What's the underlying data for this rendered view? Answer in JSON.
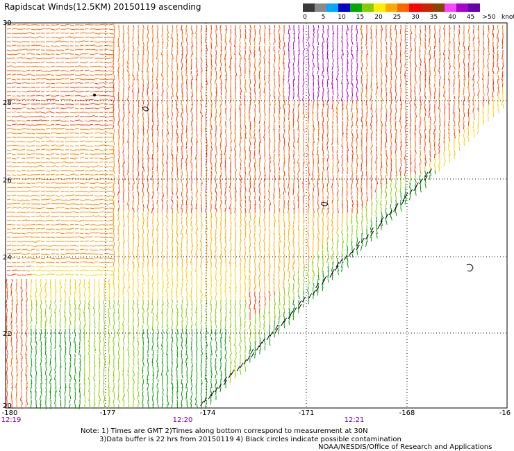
{
  "title": "Rapidscat Winds(12.5KM) 20150119 ascending",
  "legend": {
    "unit": "knots",
    "colors": [
      "#3a3a3a",
      "#8a8a8a",
      "#00aaff",
      "#0000cc",
      "#00aa00",
      "#88cc00",
      "#ffee00",
      "#ffaa00",
      "#ff6600",
      "#ff0000",
      "#cc2200",
      "#884400",
      "#ff44ff",
      "#aa00cc",
      "#6600aa"
    ],
    "labels": [
      "0",
      "5",
      "10",
      "15",
      "20",
      "25",
      "30",
      "35",
      "40",
      "45",
      ">50"
    ]
  },
  "lat_labels": [
    "30",
    "28",
    "26",
    "24",
    "22",
    "20"
  ],
  "lon_labels": [
    "-180",
    "-177",
    "-174",
    "-171",
    "-168",
    "-16"
  ],
  "time_labels": [
    "12:19",
    "12:20",
    "12:21"
  ],
  "notes": {
    "line1": "Note: 1) Times are GMT 2)Times along bottom correspond to measurement at 30N",
    "line2": "3)Data buffer is 22 hrs from 20150119 4) Black circles indicate possible contamination",
    "line3": "NOAA/NESDIS/Office of Research and Applications"
  }
}
